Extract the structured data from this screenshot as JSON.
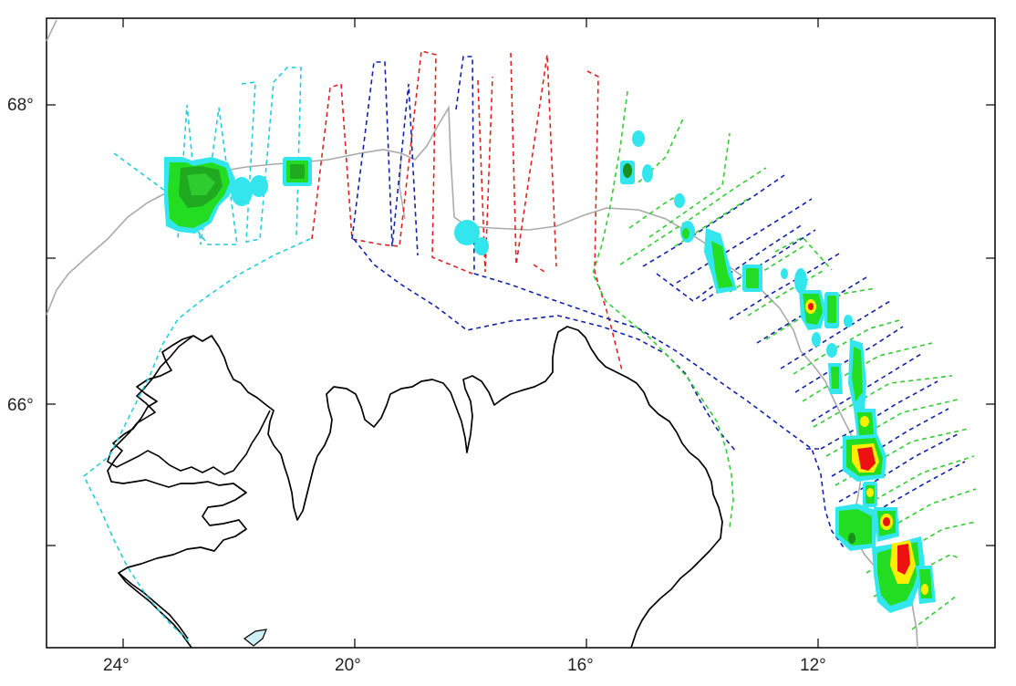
{
  "map": {
    "axis_labels": {
      "lon": [
        "24°",
        "20°",
        "16°",
        "12°"
      ],
      "lat": [
        "68°",
        "66°"
      ]
    },
    "colors": {
      "coastline": "#000000",
      "shelf_edge": "#aaaaaa",
      "survey_cyan": "#22ccdd",
      "survey_red": "#dd2222",
      "survey_blue": "#1122aa",
      "survey_green": "#33cc33",
      "density_low": "#33e6ee",
      "density_mid": "#22dd22",
      "density_high": "#ffee00",
      "density_peak": "#ee1111",
      "frame": "#000000"
    }
  }
}
